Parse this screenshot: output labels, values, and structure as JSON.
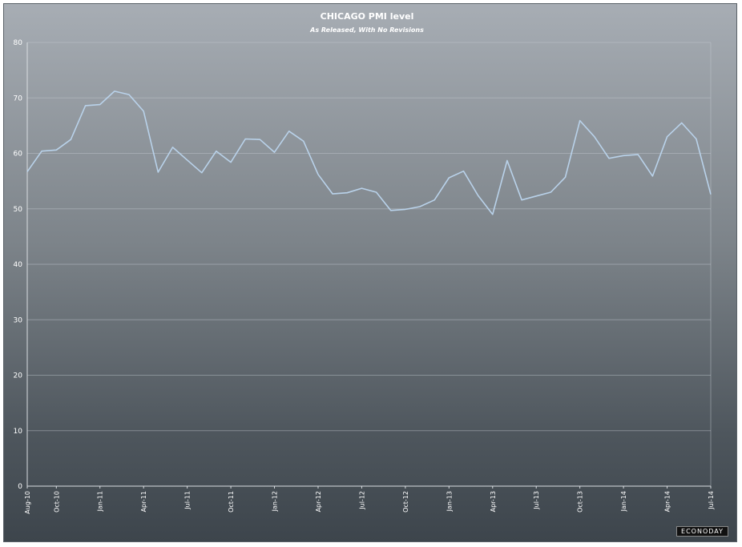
{
  "chart_data": {
    "type": "line",
    "title": "CHICAGO PMI level",
    "subtitle": "As Released, With No Revisions",
    "xlabel": "",
    "ylabel": "",
    "ylim": [
      0,
      80
    ],
    "yticks": [
      0,
      10,
      20,
      30,
      40,
      50,
      60,
      70,
      80
    ],
    "grid": true,
    "legend": "none",
    "x": [
      "Aug-10",
      "Sep-10",
      "Oct-10",
      "Nov-10",
      "Dec-10",
      "Jan-11",
      "Feb-11",
      "Mar-11",
      "Apr-11",
      "May-11",
      "Jun-11",
      "Jul-11",
      "Aug-11",
      "Sep-11",
      "Oct-11",
      "Nov-11",
      "Dec-11",
      "Jan-12",
      "Feb-12",
      "Mar-12",
      "Apr-12",
      "May-12",
      "Jun-12",
      "Jul-12",
      "Aug-12",
      "Sep-12",
      "Oct-12",
      "Nov-12",
      "Dec-12",
      "Jan-13",
      "Feb-13",
      "Mar-13",
      "Apr-13",
      "May-13",
      "Jun-13",
      "Jul-13",
      "Aug-13",
      "Sep-13",
      "Oct-13",
      "Nov-13",
      "Dec-13",
      "Jan-14",
      "Feb-14",
      "Mar-14",
      "Apr-14",
      "May-14",
      "Jun-14",
      "Jul-14"
    ],
    "xtick_labels": [
      "Aug-10",
      "Oct-10",
      "Jan-11",
      "Apr-11",
      "Jul-11",
      "Oct-11",
      "Jan-12",
      "Apr-12",
      "Jul-12",
      "Oct-12",
      "Jan-13",
      "Apr-13",
      "Jul-13",
      "Oct-13",
      "Jan-14",
      "Apr-14",
      "Jul-14"
    ],
    "series": [
      {
        "name": "",
        "color": "#b9d2ea",
        "values": [
          56.7,
          60.4,
          60.6,
          62.5,
          68.6,
          68.8,
          71.2,
          70.6,
          67.6,
          56.6,
          61.1,
          58.8,
          56.5,
          60.4,
          58.4,
          62.6,
          62.5,
          60.2,
          64.0,
          62.2,
          56.2,
          52.7,
          52.9,
          53.7,
          53.0,
          49.7,
          49.9,
          50.4,
          51.6,
          55.6,
          56.8,
          52.4,
          49.0,
          58.7,
          51.6,
          52.3,
          53.0,
          55.7,
          65.9,
          63.0,
          59.1,
          59.6,
          59.8,
          55.9,
          63.0,
          65.5,
          62.6,
          52.6
        ]
      }
    ]
  },
  "logo_text": "ECONODAY"
}
